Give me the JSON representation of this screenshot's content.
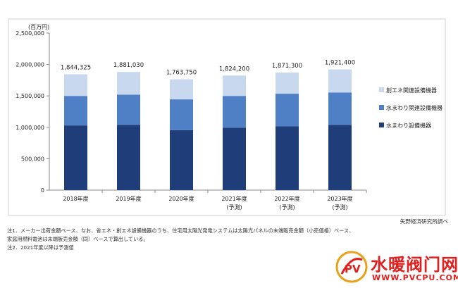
{
  "chart_data": {
    "type": "bar",
    "stacked": true,
    "unit_label": "(百万円)",
    "categories": [
      {
        "label": "2018年度",
        "sub": ""
      },
      {
        "label": "2019年度",
        "sub": ""
      },
      {
        "label": "2020年度",
        "sub": ""
      },
      {
        "label": "2021年度",
        "sub": "(予測)"
      },
      {
        "label": "2022年度",
        "sub": "(予測)"
      },
      {
        "label": "2023年度",
        "sub": "(予測)"
      }
    ],
    "series": [
      {
        "name": "水まわり設備機器",
        "color": "#1f3e79",
        "values": [
          1030000,
          1040000,
          955000,
          995000,
          1015000,
          1040000
        ]
      },
      {
        "name": "水まわり関連設備機器",
        "color": "#4f7fc4",
        "values": [
          470000,
          480000,
          490000,
          505000,
          520000,
          515000
        ]
      },
      {
        "name": "創エネ関連設備機器",
        "color": "#c7d8ef",
        "values": [
          344325,
          361030,
          318750,
          324200,
          336300,
          366400
        ]
      }
    ],
    "totals": [
      1844325,
      1881030,
      1763750,
      1824200,
      1871300,
      1921400
    ],
    "total_labels": [
      "1,844,325",
      "1,881,030",
      "1,763,750",
      "1,824,200",
      "1,871,300",
      "1,921,400"
    ],
    "yticks": [
      0,
      500000,
      1000000,
      1500000,
      2000000,
      2500000
    ],
    "ytick_labels": [
      "0",
      "500,000",
      "1,000,000",
      "1,500,000",
      "2,000,000",
      "2,500,000"
    ],
    "ylim": [
      0,
      2500000
    ],
    "legend_order": [
      "創エネ関連設備機器",
      "水まわり関連設備機器",
      "水まわり設備機器"
    ],
    "legend_position": "right",
    "grid": false
  },
  "source": "矢野経済研究所調べ",
  "notes": [
    "注1．メーカー出荷金額ベース、なお、省エネ・創エネ設備機器のうち、住宅用太陽光発電システムは太陽光パネルの末端販売金額（小売価格）ベース、",
    "家庭用燃料電池は末端販売金額（同）ベースで算出している。",
    "注2．2021年度以降は予測値"
  ],
  "watermark": {
    "title": "水暖阀门网",
    "url": "WWW.PVCPU.COM",
    "logo_text": "PV",
    "color": "#e0201e"
  }
}
